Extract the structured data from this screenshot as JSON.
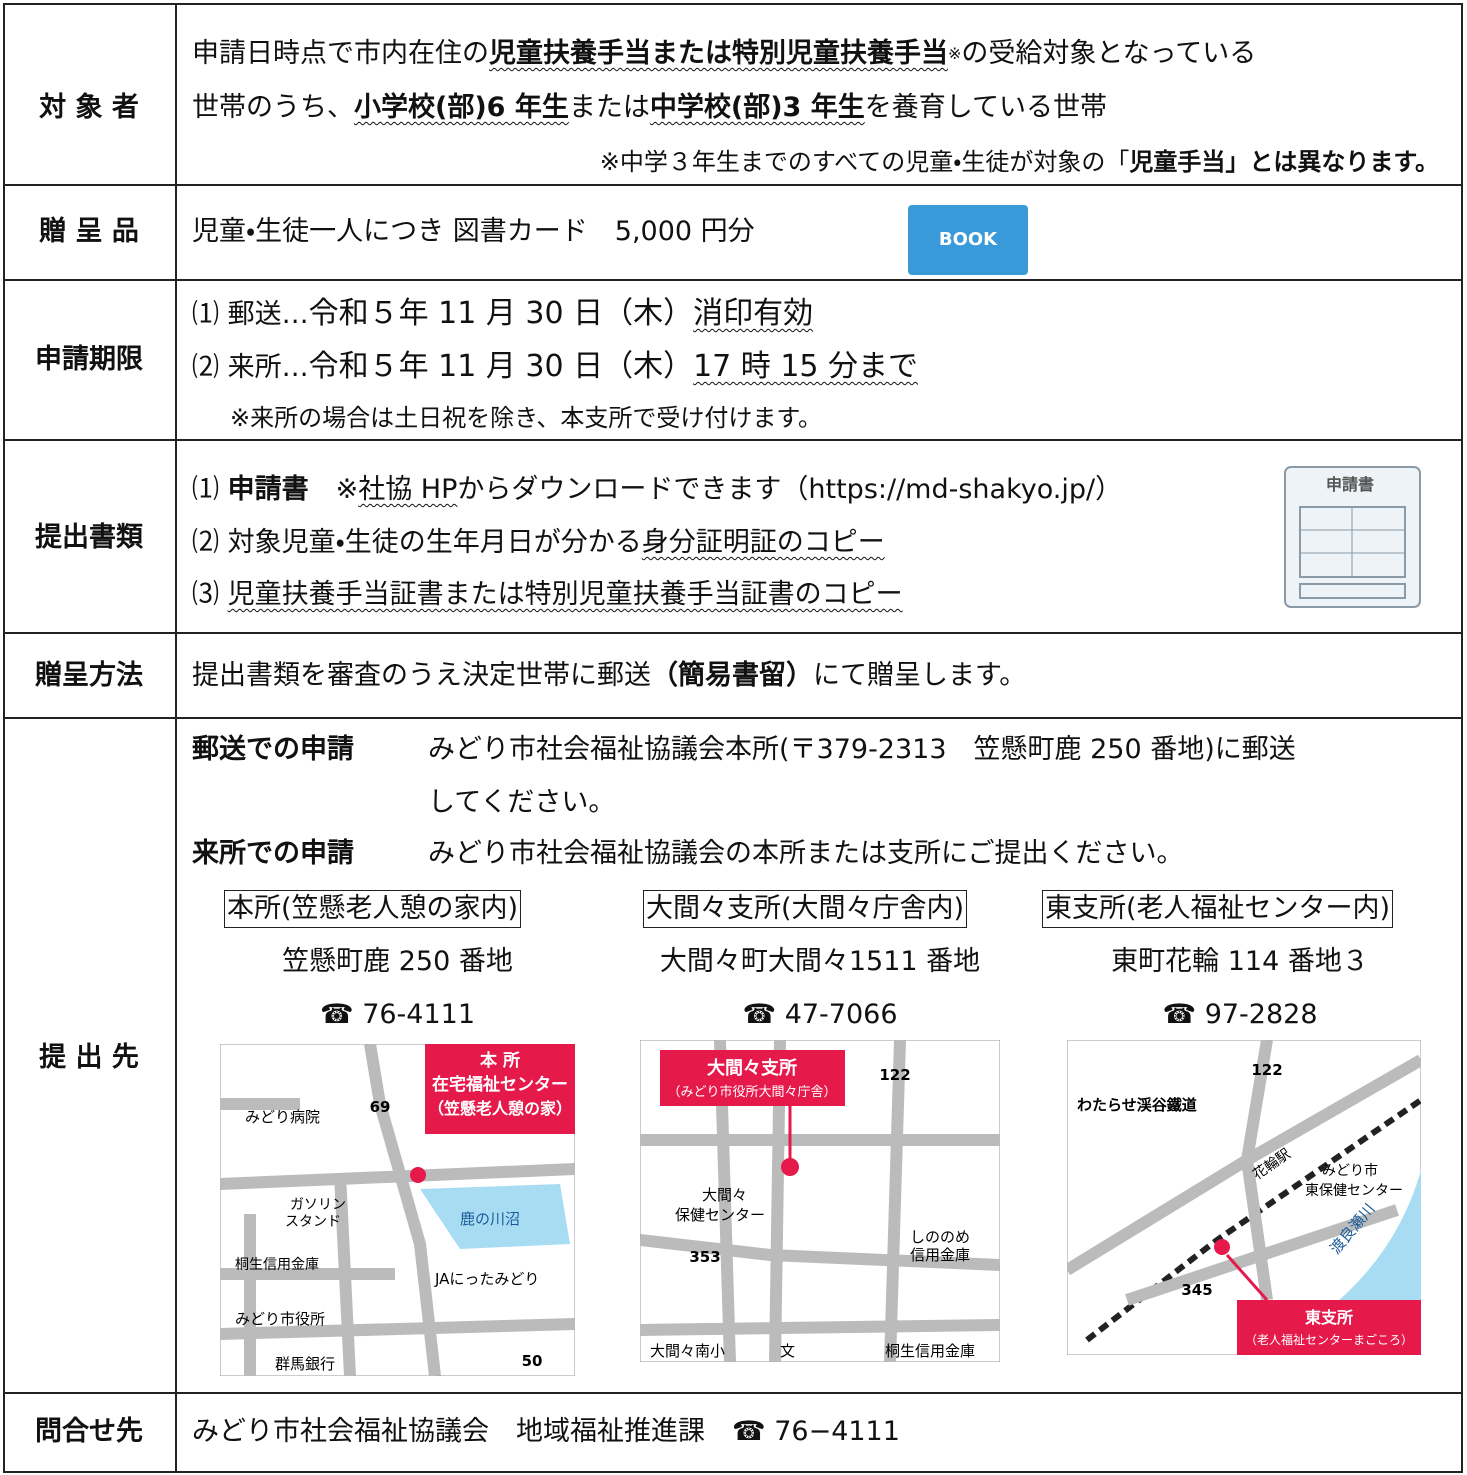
{
  "rows": [
    {
      "label": "対 象 者",
      "lines": [
        [
          "申請日時点で市内在住の",
          "児童扶養手当または特別児童扶養手当",
          "※",
          "の受給対象となっている"
        ],
        [
          "世帯のうち、",
          "小学校(部)6 年生",
          "または",
          "中学校(部)3 年生",
          "を養育している世帯"
        ],
        [
          "※中学３年生までのすべての児童・生徒が対象の「",
          "児童手当」とは異なります。"
        ]
      ]
    },
    {
      "label": "贈 呈 品",
      "lines": [
        [
          "児童・生徒一人につき 図書カード　5,000 円分"
        ]
      ],
      "icon": "BOOK"
    },
    {
      "label": "申請期限",
      "lines": [
        [
          "⑴ 郵送…",
          "令和５年 11 月 30 日（木）",
          "消印有効"
        ],
        [
          "⑵ 来所…",
          "令和５年 11 月 30 日（木）",
          "17 時 15 分まで"
        ],
        [
          "※来所の場合は土日祝を除き、本支所で受け付けます。"
        ]
      ]
    },
    {
      "label": "提出書類",
      "lines": [
        [
          "⑴ ",
          "申請書",
          "　※",
          "社協 HP",
          "からダウンロードできます（https://md-shakyo.jp/）"
        ],
        [
          "⑵ 対象児童・生徒の生年月日が分かる",
          "身分証明証のコピー"
        ],
        [
          "⑶ ",
          "児童扶養手当証書または特別児童扶養手当証書のコピー"
        ]
      ],
      "icon": "申請書"
    },
    {
      "label": "贈呈方法",
      "lines": [
        [
          "提出書類を審査のうえ決定世帯に郵送",
          "（簡易書留）",
          "にて贈呈します。"
        ]
      ]
    },
    {
      "label": "提 出 先",
      "lines": [
        [
          "郵送での申請",
          "みどり市社会福祉協議会本所(〒379-2313　笠懸町鹿 250 番地)に郵送"
        ],
        [
          "してください。"
        ],
        [
          "来所での申請",
          "みどり市社会福祉協議会の本所または支所にご提出ください。"
        ]
      ],
      "offices": [
        {
          "name": "本所(笠懸老人憩の家内)",
          "address": "笠懸町鹿 250 番地",
          "phone": "☎ 76-4111",
          "map": [
            "本 所",
            "在宅福祉センター",
            "（笠懸老人憩の家）",
            "69",
            "みどり病院",
            "ガソリン",
            "スタンド",
            "鹿の川沼",
            "桐生信用金庫",
            "JAにったみどり",
            "みどり市役所",
            "群馬銀行",
            "50"
          ]
        },
        {
          "name": "大間々支所(大間々庁舎内)",
          "address": "大間々町大間々1511 番地",
          "phone": "☎ 47-7066",
          "map": [
            "大間々支所",
            "（みどり市役所大間々庁舎）",
            "122",
            "大間々",
            "保健センター",
            "353",
            "しののめ",
            "信用金庫",
            "大間々南小",
            "文",
            "桐生信用金庫"
          ]
        },
        {
          "name": "東支所(老人福祉センター内)",
          "address": "東町花輪 114 番地３",
          "phone": "☎ 97-2828",
          "map": [
            "122",
            "わたらせ渓谷鐵道",
            "花輪駅",
            "みどり市",
            "東保健センター",
            "渡良瀬川",
            "345",
            "東支所",
            "（老人福祉センターまごころ）"
          ]
        }
      ]
    },
    {
      "label": "問合せ先",
      "lines": [
        [
          "みどり市社会福祉協議会　地域福祉推進課　☎ 76−4111"
        ]
      ]
    }
  ]
}
